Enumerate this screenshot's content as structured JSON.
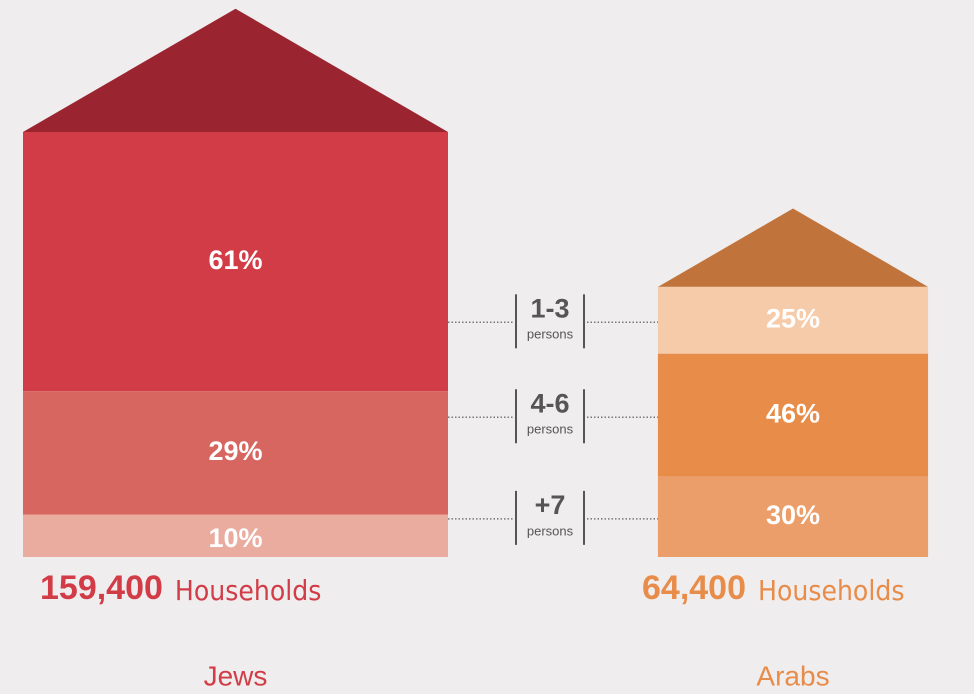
{
  "chart_data": {
    "type": "house",
    "categories": [
      "Jews",
      "Arabs"
    ],
    "totals": [
      159400,
      64400
    ],
    "total_labels": [
      "159,400",
      "64,400"
    ],
    "total_unit": "Households",
    "label_colors": [
      "#d23c47",
      "#e88c4a"
    ],
    "roof_colors": [
      "#9a2530",
      "#c0743c"
    ],
    "series_unit": "persons",
    "series": [
      {
        "name": "1-3",
        "colors": [
          "#d23c47",
          "#f5cbaa"
        ],
        "values": [
          61,
          25
        ],
        "value_labels": [
          "61%",
          "25%"
        ]
      },
      {
        "name": "4-6",
        "colors": [
          "#d76560",
          "#e88c4a"
        ],
        "values": [
          29,
          46
        ],
        "value_labels": [
          "29%",
          "46%"
        ]
      },
      {
        "name": "+7",
        "colors": [
          "#ebaca0",
          "#eb9e6a"
        ],
        "values": [
          10,
          30
        ],
        "value_labels": [
          "10%",
          "30%"
        ]
      }
    ]
  }
}
